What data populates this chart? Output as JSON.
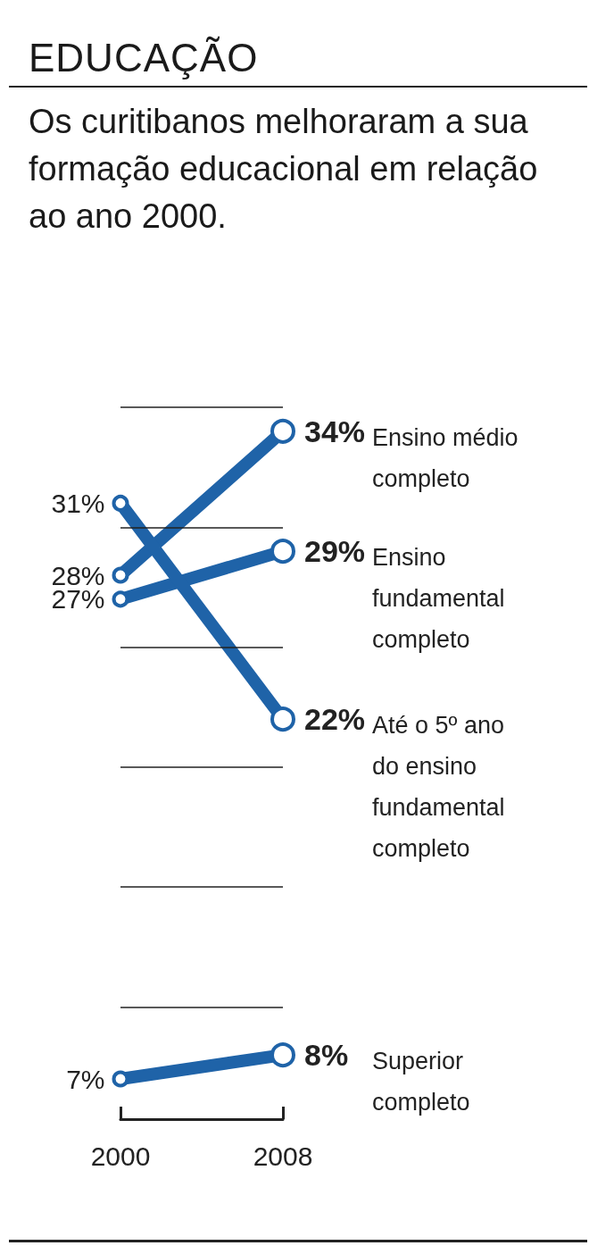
{
  "chart_data": {
    "type": "line",
    "title": "EDUCAÇÃO",
    "subtitle": "Os curitibanos melhoraram a sua formação educacional em relação ao ano 2000.",
    "categories": [
      "2000",
      "2008"
    ],
    "series": [
      {
        "name": "Ensino médio completo",
        "color": "#1f63a8",
        "values": [
          28,
          34
        ],
        "value_labels": [
          "28%",
          "34%"
        ]
      },
      {
        "name": "Ensino fundamental completo",
        "color": "#1f63a8",
        "values": [
          27,
          29
        ],
        "value_labels": [
          "27%",
          "29%"
        ]
      },
      {
        "name": "Até o 5º ano do ensino fundamental completo",
        "color": "#1f63a8",
        "values": [
          31,
          22
        ],
        "value_labels": [
          "31%",
          "22%"
        ]
      },
      {
        "name": "Superior completo",
        "color": "#1f63a8",
        "values": [
          7,
          8
        ],
        "value_labels": [
          "7%",
          "8%"
        ]
      }
    ],
    "ref_lines": [
      {
        "axis": "y",
        "value": 35,
        "color": "#222222"
      },
      {
        "axis": "y",
        "value": 30,
        "color": "#222222"
      },
      {
        "axis": "y",
        "value": 25,
        "color": "#222222"
      },
      {
        "axis": "y",
        "value": 20,
        "color": "#222222"
      },
      {
        "axis": "y",
        "value": 15,
        "color": "#222222"
      },
      {
        "axis": "y",
        "value": 10,
        "color": "#222222"
      }
    ],
    "tick_labels": "x",
    "marker": "circle",
    "line_style": "solid"
  }
}
